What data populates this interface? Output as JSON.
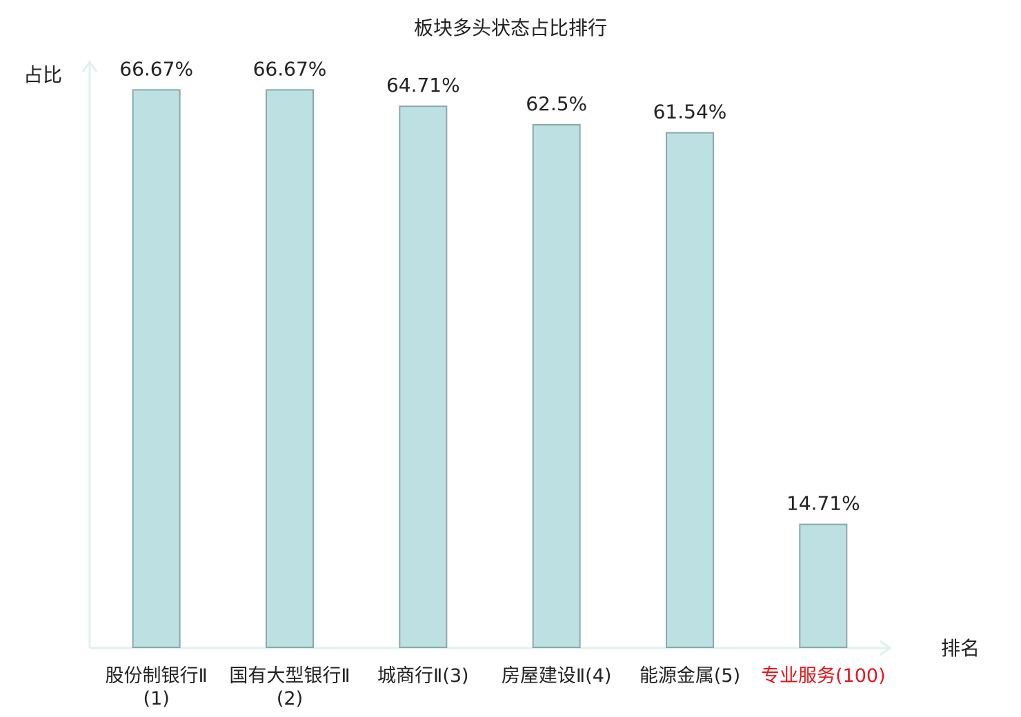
{
  "chart_data": {
    "type": "bar",
    "title": "板块多头状态占比排行",
    "y_label": "占比",
    "x_label": "排名",
    "categories": [
      "股份制银行Ⅱ(1)",
      "国有大型银行Ⅱ(2)",
      "城商行Ⅱ(3)",
      "房屋建设Ⅱ(4)",
      "能源金属(5)",
      "专业服务(100)"
    ],
    "category_colors": [
      "#222222",
      "#222222",
      "#222222",
      "#222222",
      "#222222",
      "#e8141a"
    ],
    "values": [
      66.67,
      66.67,
      64.71,
      62.5,
      61.54,
      14.71
    ],
    "value_labels": [
      "66.67%",
      "66.67%",
      "64.71%",
      "62.5%",
      "61.54%",
      "14.71%"
    ],
    "color": "#bde0e3",
    "edge_color": "#8aa8aa",
    "ylim": [
      0,
      70
    ]
  }
}
